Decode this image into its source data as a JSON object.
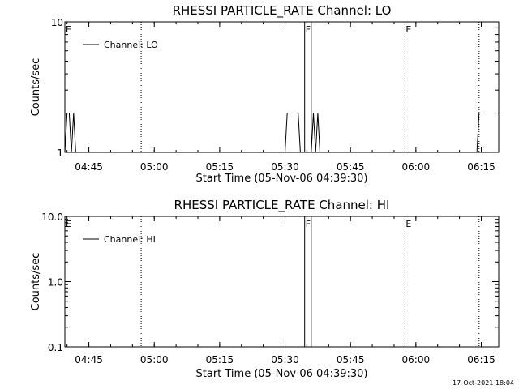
{
  "footer": {
    "timestamp": "17-Oct-2021 18:04"
  },
  "colors": {
    "line": "#000000",
    "background": "#ffffff"
  },
  "chart_data": [
    {
      "type": "line",
      "title": "RHESSI PARTICLE_RATE Channel: LO",
      "xlabel": "Start Time (05-Nov-06 04:39:30)",
      "ylabel": "Counts/sec",
      "yscale": "log",
      "ylim": [
        1,
        10
      ],
      "ytick_values": [
        1,
        10
      ],
      "ytick_labels": [
        "1",
        "10"
      ],
      "xlim": [
        "04:39:30",
        "06:19:00"
      ],
      "xtick_labels": [
        "04:45",
        "05:00",
        "05:15",
        "05:30",
        "05:45",
        "06:00",
        "06:15"
      ],
      "xtick_times": [
        "04:45",
        "05:00",
        "05:15",
        "05:30",
        "05:45",
        "06:00",
        "06:15"
      ],
      "legend": {
        "position": "top-left",
        "entries": [
          "Channel: LO"
        ]
      },
      "markers": [
        {
          "label": "E",
          "time": "04:39:30"
        },
        {
          "label": "",
          "time": "04:57:00"
        },
        {
          "label": "F",
          "time": "05:34:30"
        },
        {
          "label": "E",
          "time": "05:57:30"
        },
        {
          "label": "",
          "time": "06:14:30"
        }
      ],
      "series": [
        {
          "name": "Channel: LO",
          "points": [
            [
              "04:39:30",
              1
            ],
            [
              "04:40:00",
              2
            ],
            [
              "04:40:30",
              2
            ],
            [
              "04:41:00",
              1
            ],
            [
              "04:41:30",
              2
            ],
            [
              "04:42:00",
              1
            ],
            [
              "05:30:00",
              1
            ],
            [
              "05:30:30",
              2
            ],
            [
              "05:31:00",
              2
            ],
            [
              "05:33:00",
              2
            ],
            [
              "05:33:30",
              1
            ],
            [
              "05:34:30",
              1
            ],
            [
              "05:34:30",
              10
            ],
            [
              "05:36:00",
              10
            ],
            [
              "05:36:00",
              1
            ],
            [
              "05:36:30",
              2
            ],
            [
              "05:37:00",
              1
            ],
            [
              "05:37:30",
              2
            ],
            [
              "05:38:00",
              1
            ],
            [
              "06:14:00",
              1
            ],
            [
              "06:14:30",
              2
            ],
            [
              "06:15:00",
              2
            ]
          ]
        }
      ]
    },
    {
      "type": "line",
      "title": "RHESSI PARTICLE_RATE Channel: HI",
      "xlabel": "Start Time (05-Nov-06 04:39:30)",
      "ylabel": "Counts/sec",
      "yscale": "log",
      "ylim": [
        0.1,
        10
      ],
      "ytick_values": [
        0.1,
        1,
        10
      ],
      "ytick_labels": [
        "0.1",
        "1.0",
        "10.0"
      ],
      "xlim": [
        "04:39:30",
        "06:19:00"
      ],
      "xtick_labels": [
        "04:45",
        "05:00",
        "05:15",
        "05:30",
        "05:45",
        "06:00",
        "06:15"
      ],
      "xtick_times": [
        "04:45",
        "05:00",
        "05:15",
        "05:30",
        "05:45",
        "06:00",
        "06:15"
      ],
      "legend": {
        "position": "top-left",
        "entries": [
          "Channel: HI"
        ]
      },
      "markers": [
        {
          "label": "E",
          "time": "04:39:30"
        },
        {
          "label": "",
          "time": "04:57:00"
        },
        {
          "label": "F",
          "time": "05:34:30"
        },
        {
          "label": "E",
          "time": "05:57:30"
        },
        {
          "label": "",
          "time": "06:14:30"
        }
      ],
      "series": [
        {
          "name": "Channel: HI",
          "points": [
            [
              "05:34:30",
              0.1
            ],
            [
              "05:34:30",
              10
            ],
            [
              "05:36:00",
              10
            ],
            [
              "05:36:00",
              0.1
            ]
          ]
        }
      ]
    }
  ]
}
